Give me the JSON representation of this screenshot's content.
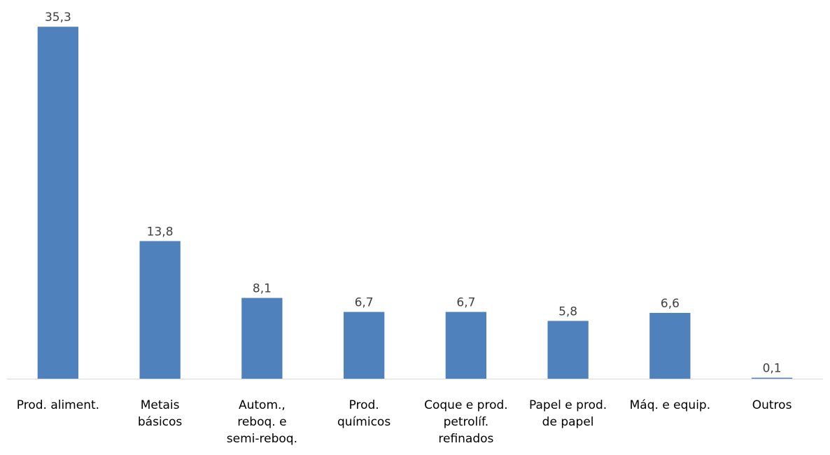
{
  "chart_data": {
    "type": "bar",
    "title": "",
    "categories": [
      [
        "Prod. aliment."
      ],
      [
        "Metais",
        "básicos"
      ],
      [
        "Autom.,",
        "reboq. e",
        "semi-reboq."
      ],
      [
        "Prod.",
        "químicos"
      ],
      [
        "Coque e prod.",
        "petrolíf.",
        "refinados"
      ],
      [
        "Papel e prod.",
        "de papel"
      ],
      [
        "Máq. e equip."
      ],
      [
        "Outros"
      ]
    ],
    "values": [
      35.3,
      13.8,
      8.1,
      6.7,
      6.7,
      5.8,
      6.6,
      0.1
    ],
    "value_labels": [
      "35,3",
      "13,8",
      "8,1",
      "6,7",
      "6,7",
      "5,8",
      "6,6",
      "0,1"
    ],
    "ylim": [
      0,
      37
    ],
    "grid": false,
    "legend": "none",
    "bar_color": "#4f81bd",
    "axis_color": "#d9d9d9"
  }
}
